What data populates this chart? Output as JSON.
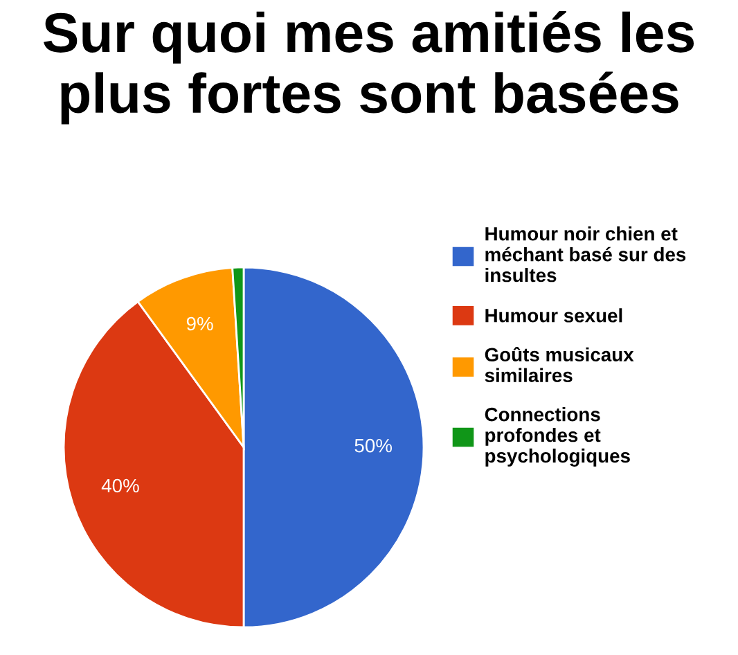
{
  "chart_data": {
    "type": "pie",
    "title": "Sur quoi mes amitiés les plus fortes sont basées",
    "categories": [
      "Humour noir chien et\nméchant basé sur des\ninsultes",
      "Humour sexuel",
      "Goûts musicaux\nsimilaires",
      "Connections\nprofondes et\npsychologiques"
    ],
    "values": [
      50,
      40,
      9,
      1
    ],
    "colors": [
      "#3366cc",
      "#dc3912",
      "#ff9900",
      "#109618"
    ],
    "value_labels": [
      "50%",
      "40%",
      "9%",
      null
    ],
    "legend": "right"
  }
}
